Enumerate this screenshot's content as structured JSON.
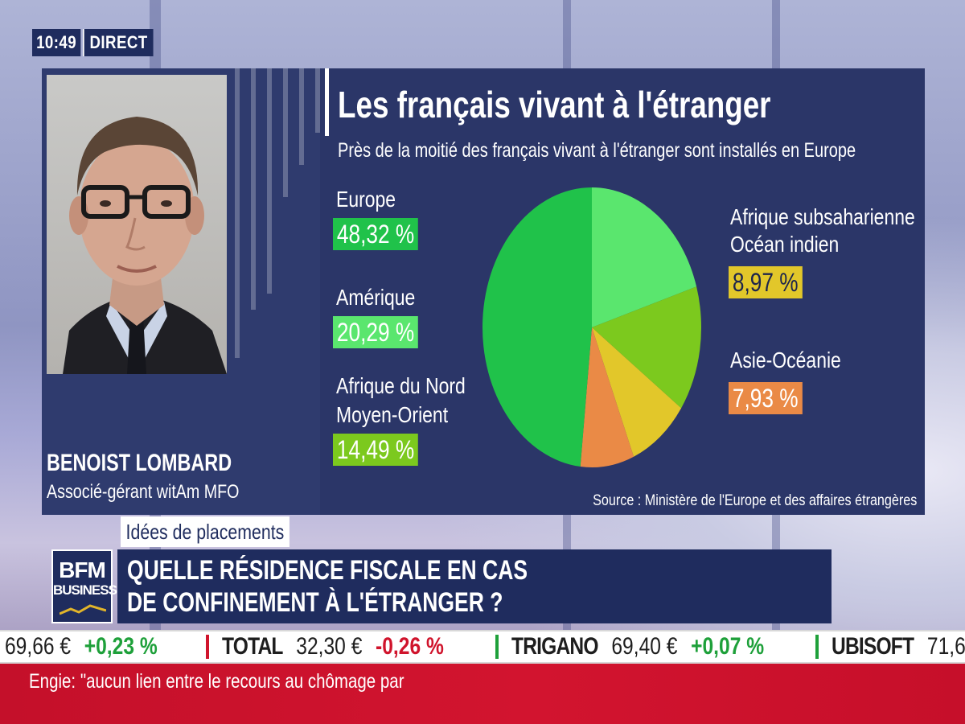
{
  "broadcast": {
    "time": "10:49",
    "live_label": "DIRECT"
  },
  "guest": {
    "name": "BENOIST LOMBARD",
    "role": "Associé-gérant witAm MFO"
  },
  "chart_data": {
    "type": "pie",
    "title": "Les français vivant à l'étranger",
    "subtitle": "Près de la moitié des français vivant à l'étranger sont installés en Europe",
    "source": "Source : Ministère de l'Europe et des affaires étrangères",
    "slices": [
      {
        "label": "Europe",
        "value_text": "48,32 %",
        "value": 48.32,
        "color": "#20c24a"
      },
      {
        "label": "Amérique",
        "value_text": "20,29 %",
        "value": 20.29,
        "color": "#5ae66e"
      },
      {
        "label": "Afrique du Nord\nMoyen-Orient",
        "label_line1": "Afrique du Nord",
        "label_line2": "Moyen-Orient",
        "value_text": "14,49 %",
        "value": 14.49,
        "color": "#7cc91e"
      },
      {
        "label": "Afrique subsaharienne\nOcéan indien",
        "label_line1": "Afrique subsaharienne",
        "label_line2": "Océan indien",
        "value_text": "8,97 %",
        "value": 8.97,
        "color": "#e2c72a"
      },
      {
        "label": "Asie-Océanie",
        "value_text": "7,93 %",
        "value": 7.93,
        "color": "#ea8a46"
      }
    ]
  },
  "lower_third": {
    "tag": "Idées de placements",
    "headline_line1": "QUELLE RÉSIDENCE FISCALE EN CAS",
    "headline_line2": "DE CONFINEMENT À L'ÉTRANGER ?",
    "logo_line1": "BFM",
    "logo_line2": "BUSINESS"
  },
  "ticker": [
    {
      "name": "",
      "price": "69,66 €",
      "change": "+0,23 %",
      "color": "#1ea03a"
    },
    {
      "name": "TOTAL",
      "price": "32,30 €",
      "change": "-0,26 %",
      "color": "#d0142c"
    },
    {
      "name": "TRIGANO",
      "price": "69,40 €",
      "change": "+0,07 %",
      "color": "#1ea03a"
    },
    {
      "name": "UBISOFT",
      "price": "71,6",
      "change": "",
      "color": "#1ea03a"
    }
  ],
  "news": {
    "text": "Engie: \"aucun lien entre le recours au chômage par"
  }
}
